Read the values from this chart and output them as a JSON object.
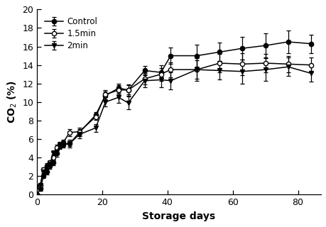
{
  "control_x": [
    0,
    1,
    2,
    3,
    4,
    5,
    6,
    7,
    8,
    10,
    13,
    18,
    21,
    25,
    28,
    33,
    38,
    41,
    49,
    56,
    63,
    70,
    77,
    84
  ],
  "control_y": [
    0.0,
    0.6,
    2.0,
    2.5,
    3.1,
    3.5,
    4.5,
    5.2,
    5.4,
    5.5,
    6.7,
    8.6,
    10.7,
    11.5,
    11.3,
    13.4,
    13.2,
    15.0,
    15.0,
    15.4,
    15.8,
    16.1,
    16.5,
    16.3
  ],
  "control_err": [
    0.0,
    0.2,
    0.2,
    0.3,
    0.3,
    0.3,
    0.4,
    0.3,
    0.3,
    0.3,
    0.4,
    0.3,
    0.4,
    0.5,
    0.6,
    0.5,
    0.8,
    0.9,
    1.2,
    1.0,
    1.2,
    1.3,
    1.2,
    1.0
  ],
  "min15_x": [
    0,
    1,
    2,
    3,
    4,
    5,
    6,
    7,
    8,
    10,
    13,
    18,
    21,
    25,
    28,
    33,
    38,
    41,
    49,
    56,
    63,
    70,
    77,
    84
  ],
  "min15_y": [
    0.9,
    1.0,
    2.7,
    3.1,
    3.5,
    4.0,
    5.1,
    5.4,
    5.6,
    6.7,
    6.8,
    8.4,
    10.8,
    11.3,
    11.3,
    12.5,
    13.0,
    13.5,
    13.5,
    14.2,
    14.1,
    14.2,
    14.1,
    14.0
  ],
  "min15_err": [
    0.1,
    0.2,
    0.2,
    0.3,
    0.2,
    0.3,
    0.3,
    0.3,
    0.3,
    0.4,
    0.4,
    0.3,
    0.5,
    0.5,
    0.5,
    0.6,
    0.7,
    0.8,
    1.0,
    1.0,
    1.2,
    1.0,
    0.9,
    0.8
  ],
  "min2_x": [
    0,
    1,
    2,
    3,
    4,
    5,
    6,
    7,
    8,
    10,
    13,
    18,
    21,
    25,
    28,
    33,
    38,
    41,
    49,
    56,
    63,
    70,
    77,
    84
  ],
  "min2_y": [
    0.9,
    1.0,
    2.5,
    3.0,
    3.3,
    4.5,
    4.6,
    5.3,
    5.5,
    5.5,
    6.5,
    7.2,
    10.0,
    10.5,
    9.9,
    12.3,
    12.4,
    12.3,
    13.5,
    13.4,
    13.3,
    13.5,
    13.8,
    13.1
  ],
  "min2_err": [
    0.1,
    0.2,
    0.2,
    0.2,
    0.3,
    0.3,
    0.3,
    0.3,
    0.3,
    0.4,
    0.4,
    0.4,
    0.5,
    0.6,
    0.7,
    0.7,
    0.8,
    0.9,
    1.2,
    1.0,
    1.3,
    1.2,
    1.0,
    0.9
  ],
  "xlabel": "Storage days",
  "ylabel": "CO$_2$ (%)",
  "xlim": [
    0,
    87
  ],
  "ylim": [
    0,
    20
  ],
  "yticks": [
    0,
    2,
    4,
    6,
    8,
    10,
    12,
    14,
    16,
    18,
    20
  ],
  "xticks": [
    0,
    20,
    40,
    60,
    80
  ],
  "legend_labels": [
    "Control",
    "1.5min",
    "2min"
  ],
  "fig_width": 4.6,
  "fig_height": 3.2,
  "dpi": 100
}
